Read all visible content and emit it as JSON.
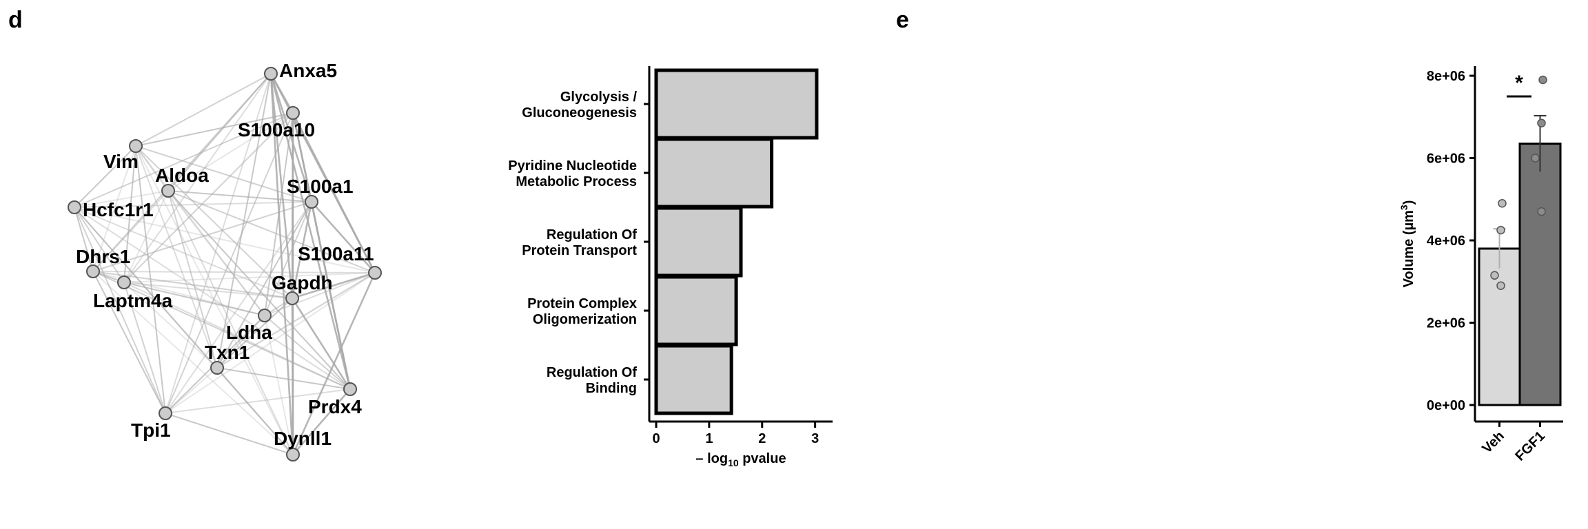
{
  "panels": {
    "d_label": "d",
    "e_label": "e"
  },
  "chart_data": [
    {
      "type": "network",
      "nodes": [
        {
          "id": "Anxa5",
          "label": "Anxa5"
        },
        {
          "id": "S100a10",
          "label": "S100a10"
        },
        {
          "id": "Vim",
          "label": "Vim",
          "highlight_color": "#e8141c"
        },
        {
          "id": "Aldoa",
          "label": "Aldoa"
        },
        {
          "id": "S100a1",
          "label": "S100a1"
        },
        {
          "id": "Hcfc1r1",
          "label": "Hcfc1r1"
        },
        {
          "id": "Dhrs1",
          "label": "Dhrs1"
        },
        {
          "id": "S100a11",
          "label": "S100a11"
        },
        {
          "id": "Gapdh",
          "label": "Gapdh"
        },
        {
          "id": "Laptm4a",
          "label": "Laptm4a"
        },
        {
          "id": "Ldha",
          "label": "Ldha"
        },
        {
          "id": "Txn1",
          "label": "Txn1"
        },
        {
          "id": "Prdx4",
          "label": "Prdx4"
        },
        {
          "id": "Tpi1",
          "label": "Tpi1"
        },
        {
          "id": "Dynll1",
          "label": "Dynll1"
        }
      ],
      "node_fill": "#cccccc",
      "edge_color": "#a9a9a9"
    },
    {
      "type": "bar",
      "orientation": "horizontal",
      "categories": [
        {
          "line1": "Glycolysis /",
          "line2": "Gluconeogenesis"
        },
        {
          "line1": "Pyridine Nucleotide",
          "line2": "Metabolic Process"
        },
        {
          "line1": "Regulation Of",
          "line2": "Protein Transport"
        },
        {
          "line1": "Protein Complex",
          "line2": "Oligomerization"
        },
        {
          "line1": "Regulation Of",
          "line2": "Binding"
        }
      ],
      "values": [
        3.03,
        2.18,
        1.6,
        1.51,
        1.42
      ],
      "xlim": [
        0,
        3.2
      ],
      "xticks": [
        "0",
        "1",
        "2",
        "3"
      ],
      "xlabel_prefix": "– log",
      "xlabel_sub": "10",
      "xlabel_suffix": " pvalue",
      "bar_fill": "#cccccc"
    },
    {
      "type": "bar",
      "categories": [
        "Veh",
        "FGF1"
      ],
      "values": [
        3800000,
        6350000
      ],
      "errors": [
        480000,
        680000
      ],
      "points": [
        [
          4900000,
          4250000,
          3150000,
          2900000
        ],
        [
          7900000,
          6850000,
          6000000,
          4700000
        ]
      ],
      "colors": [
        "#d9d9d9",
        "#737373"
      ],
      "point_fill": [
        "#bdbdbd",
        "#8c8c8c"
      ],
      "ylim": [
        0,
        8400000
      ],
      "yticks": [
        {
          "value": 0,
          "label": "0e+00"
        },
        {
          "value": 2000000,
          "label": "2e+06"
        },
        {
          "value": 4000000,
          "label": "4e+06"
        },
        {
          "value": 6000000,
          "label": "6e+06"
        },
        {
          "value": 8000000,
          "label": "8e+06"
        }
      ],
      "ylabel_prefix": "Volume (",
      "ylabel_unit": "µm",
      "ylabel_sup": "3",
      "ylabel_suffix": ")",
      "significance": "*"
    }
  ]
}
